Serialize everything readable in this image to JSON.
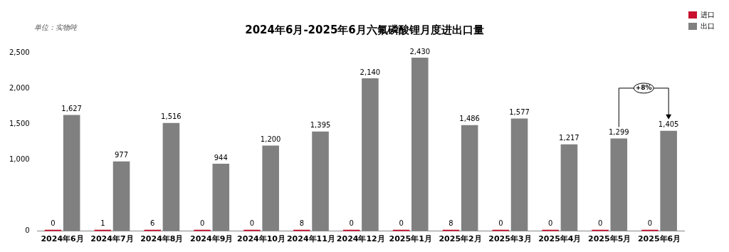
{
  "chart_data": {
    "type": "bar",
    "title": "2024年6月-2025年6月六氟磷酸锂月度进出口量",
    "categories": [
      "2024年6月",
      "2024年7月",
      "2024年8月",
      "2024年9月",
      "2024年10月",
      "2024年11月",
      "2024年12月",
      "2025年1月",
      "2025年2月",
      "2025年3月",
      "2025年4月",
      "2025年5月",
      "2025年6月"
    ],
    "series": [
      {
        "name": "进口",
        "color": "#c8102e",
        "values": [
          0,
          1,
          6,
          0,
          0,
          8,
          0,
          0,
          8,
          0,
          0,
          0,
          0
        ],
        "value_labels": [
          "0",
          "1",
          "6",
          "0",
          "0",
          "8",
          "0",
          "0",
          "8",
          "0",
          "0",
          "0",
          "0"
        ]
      },
      {
        "name": "出口",
        "color": "#808080",
        "values": [
          1627,
          977,
          1516,
          944,
          1200,
          1395,
          2140,
          2430,
          1486,
          1577,
          1217,
          1299,
          1405
        ],
        "value_labels": [
          "1,627",
          "977",
          "1,516",
          "944",
          "1,200",
          "1,395",
          "2,140",
          "2,430",
          "1,486",
          "1,577",
          "1,217",
          "1,299",
          "1,405"
        ]
      }
    ],
    "ylim": [
      0,
      2500
    ],
    "yticks": [
      0,
      {
        "value": 1000,
        "label": "1,000"
      },
      {
        "value": 1500,
        "label": "1,500"
      },
      {
        "value": 2000,
        "label": "2,000"
      },
      {
        "value": 2500,
        "label": "2,500"
      }
    ],
    "grid": false,
    "legend": "top right",
    "annotations": [
      "单位：实物吨",
      "+8%"
    ]
  }
}
